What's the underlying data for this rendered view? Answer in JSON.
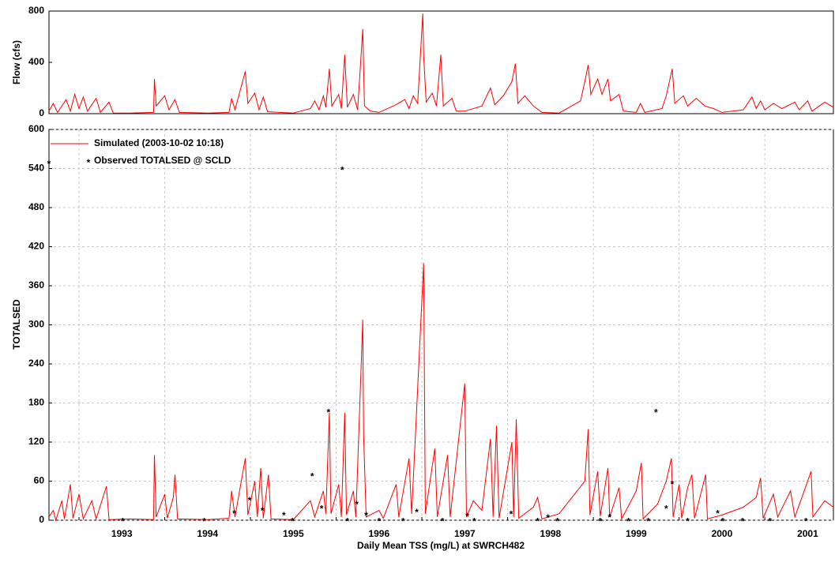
{
  "chart_data": [
    {
      "type": "line",
      "y_label": "Flow (cfs)",
      "xlim": [
        1992.65,
        2001.8
      ],
      "ylim": [
        0,
        800
      ],
      "yticks": [
        0,
        400,
        800
      ],
      "grid": false,
      "series": [
        {
          "color": "#ff0000",
          "kind": "line",
          "x": [
            1992.65,
            1992.7,
            1992.75,
            1992.85,
            1992.9,
            1992.95,
            1993.0,
            1993.05,
            1993.1,
            1993.2,
            1993.25,
            1993.35,
            1993.4,
            1993.6,
            1993.87,
            1993.88,
            1993.9,
            1994.0,
            1994.05,
            1994.12,
            1994.17,
            1994.5,
            1994.75,
            1994.78,
            1994.82,
            1994.94,
            1994.97,
            1995.05,
            1995.1,
            1995.15,
            1995.2,
            1995.5,
            1995.7,
            1995.75,
            1995.8,
            1995.85,
            1995.88,
            1995.92,
            1995.95,
            1996.03,
            1996.06,
            1996.1,
            1996.13,
            1996.2,
            1996.25,
            1996.31,
            1996.33,
            1996.4,
            1996.5,
            1996.7,
            1996.8,
            1996.85,
            1996.9,
            1996.95,
            1997.01,
            1997.02,
            1997.05,
            1997.12,
            1997.17,
            1997.22,
            1997.25,
            1997.35,
            1997.4,
            1997.5,
            1997.7,
            1997.8,
            1997.85,
            1997.95,
            1998.05,
            1998.09,
            1998.12,
            1998.2,
            1998.3,
            1998.4,
            1998.6,
            1998.85,
            1998.9,
            1998.94,
            1998.97,
            1999.05,
            1999.1,
            1999.17,
            1999.2,
            1999.3,
            1999.35,
            1999.5,
            1999.55,
            1999.6,
            1999.8,
            1999.85,
            1999.92,
            1999.95,
            2000.05,
            2000.1,
            2000.2,
            2000.3,
            2000.4,
            2000.5,
            2000.75,
            2000.85,
            2000.9,
            2000.95,
            2001.0,
            2001.1,
            2001.2,
            2001.35,
            2001.4,
            2001.5,
            2001.55,
            2001.7,
            2001.8
          ],
          "values": [
            20,
            80,
            10,
            110,
            20,
            150,
            40,
            130,
            20,
            120,
            10,
            90,
            5,
            5,
            10,
            270,
            60,
            140,
            30,
            110,
            10,
            5,
            10,
            120,
            30,
            330,
            80,
            160,
            30,
            130,
            15,
            5,
            40,
            100,
            30,
            140,
            50,
            350,
            60,
            150,
            40,
            460,
            50,
            150,
            30,
            660,
            60,
            20,
            10,
            70,
            110,
            40,
            140,
            80,
            780,
            450,
            90,
            160,
            60,
            460,
            60,
            120,
            20,
            20,
            60,
            200,
            70,
            140,
            250,
            390,
            80,
            140,
            60,
            10,
            5,
            100,
            250,
            380,
            150,
            270,
            150,
            270,
            100,
            150,
            20,
            10,
            80,
            10,
            40,
            140,
            350,
            80,
            140,
            60,
            120,
            60,
            40,
            10,
            30,
            130,
            40,
            100,
            30,
            80,
            40,
            90,
            30,
            100,
            20,
            90,
            50
          ]
        }
      ]
    },
    {
      "type": "line",
      "y_label": "TOTALSED",
      "x_label": "Daily Mean TSS (mg/L) at SWRCH482",
      "xlim": [
        1992.65,
        2001.8
      ],
      "xticks": [
        1993,
        1994,
        1995,
        1996,
        1997,
        1998,
        1999,
        2000,
        2001
      ],
      "ylim": [
        0,
        600
      ],
      "yticks": [
        0,
        60,
        120,
        180,
        240,
        300,
        360,
        420,
        480,
        540,
        600
      ],
      "grid": true,
      "legend": "top-left",
      "series": [
        {
          "name": "Simulated (2003-10-02 10:18)",
          "color": "#ff0000",
          "kind": "line",
          "x": [
            1992.65,
            1992.7,
            1992.73,
            1992.8,
            1992.83,
            1992.9,
            1992.93,
            1993.0,
            1993.05,
            1993.15,
            1993.2,
            1993.32,
            1993.35,
            1993.6,
            1993.87,
            1993.88,
            1993.9,
            1994.0,
            1994.03,
            1994.1,
            1994.12,
            1994.15,
            1994.5,
            1994.75,
            1994.78,
            1994.82,
            1994.94,
            1994.97,
            1995.05,
            1995.08,
            1995.12,
            1995.15,
            1995.21,
            1995.24,
            1995.5,
            1995.7,
            1995.75,
            1995.85,
            1995.88,
            1995.92,
            1995.94,
            1996.03,
            1996.06,
            1996.1,
            1996.12,
            1996.2,
            1996.23,
            1996.31,
            1996.32,
            1996.35,
            1996.5,
            1996.55,
            1996.7,
            1996.73,
            1996.85,
            1996.88,
            1997.02,
            1997.04,
            1997.15,
            1997.18,
            1997.3,
            1997.33,
            1997.5,
            1997.52,
            1997.6,
            1997.7,
            1997.8,
            1997.83,
            1997.87,
            1997.9,
            1998.05,
            1998.07,
            1998.1,
            1998.13,
            1998.3,
            1998.35,
            1998.4,
            1998.6,
            1998.9,
            1998.94,
            1998.96,
            1999.05,
            1999.08,
            1999.17,
            1999.19,
            1999.3,
            1999.33,
            1999.5,
            1999.56,
            1999.58,
            1999.75,
            1999.85,
            1999.91,
            1999.93,
            2000.0,
            2000.03,
            2000.1,
            2000.15,
            2000.18,
            2000.31,
            2000.33,
            2000.5,
            2000.75,
            2000.9,
            2000.95,
            2000.98,
            2001.1,
            2001.15,
            2001.3,
            2001.35,
            2001.54,
            2001.56,
            2001.7,
            2001.8
          ],
          "values": [
            5,
            15,
            0,
            30,
            2,
            55,
            3,
            40,
            2,
            30,
            2,
            52,
            1,
            2,
            1,
            100,
            5,
            40,
            3,
            35,
            70,
            2,
            1,
            3,
            45,
            5,
            95,
            8,
            60,
            5,
            80,
            3,
            70,
            2,
            1,
            30,
            5,
            45,
            10,
            165,
            10,
            55,
            5,
            165,
            8,
            45,
            5,
            308,
            130,
            5,
            15,
            3,
            55,
            5,
            95,
            10,
            395,
            10,
            110,
            5,
            100,
            5,
            210,
            5,
            30,
            15,
            125,
            5,
            145,
            3,
            120,
            5,
            155,
            3,
            20,
            35,
            2,
            10,
            60,
            140,
            8,
            75,
            6,
            80,
            5,
            50,
            2,
            45,
            88,
            2,
            25,
            60,
            95,
            5,
            55,
            3,
            50,
            70,
            3,
            70,
            2,
            8,
            20,
            35,
            65,
            3,
            40,
            5,
            45,
            5,
            75,
            5,
            30,
            20
          ]
        },
        {
          "name": "Observed TOTALSED @ SCLD",
          "color": "#0000ff",
          "kind": "scatter",
          "x": [
            1992.65,
            1996.07,
            1995.91,
            1995.72,
            1999.73,
            1999.92,
            1994.99,
            1994.81,
            1995.14,
            1995.39,
            1995.83,
            1996.24,
            1996.35,
            1996.94,
            1997.53,
            1998.04,
            1998.47,
            1999.19,
            1999.85,
            2000.45,
            1993.51,
            1994.46,
            1995.49,
            1996.13,
            1996.5,
            1996.78,
            1997.24,
            1997.61,
            1998.35,
            1998.58,
            1999.08,
            1999.41,
            1999.64,
            2000.1,
            2000.51,
            2000.74,
            2001.06,
            2001.48
          ],
          "values": [
            550,
            540,
            168,
            70,
            168,
            58,
            33,
            13,
            17,
            10,
            20,
            27,
            10,
            15,
            8,
            12,
            6,
            7,
            20,
            13,
            1,
            1,
            1,
            1,
            1,
            1,
            1,
            1,
            1,
            1,
            1,
            1,
            1,
            1,
            1,
            1,
            1,
            1
          ]
        }
      ]
    }
  ]
}
